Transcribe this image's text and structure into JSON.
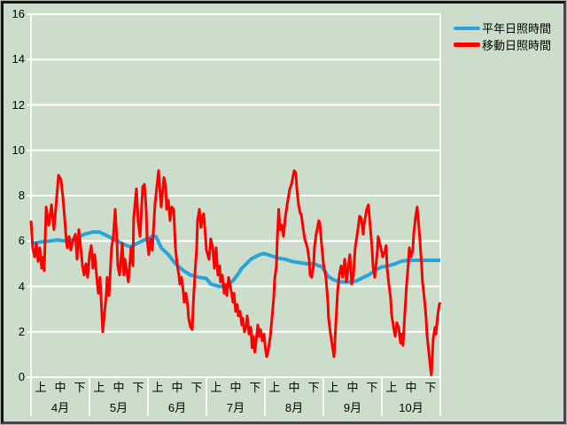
{
  "window": {
    "background": "#ccdecb",
    "outer_edge_color": "#b4b8b4",
    "inner_border_color": "#2c2c2c"
  },
  "chart_data": {
    "type": "line",
    "title": "",
    "background": "#ccdecb",
    "grid": "horizontal",
    "grid_color": "#ffffff",
    "axis_color": "#ffffff",
    "text_color": "#000000",
    "ylim": [
      0,
      16
    ],
    "yticks": [
      0,
      2,
      4,
      6,
      8,
      10,
      12,
      14,
      16
    ],
    "x_axis": {
      "months": [
        "4月",
        "5月",
        "6月",
        "7月",
        "8月",
        "9月",
        "10月"
      ],
      "periods_per_month": [
        "上",
        "中",
        "下"
      ],
      "domain": [
        0,
        214
      ],
      "unit": "day-from-april-1"
    },
    "legend_position": "top-right",
    "series": [
      {
        "name": "平年日照時間",
        "color": "#2aa3d9",
        "stroke_width": 4,
        "points": [
          [
            0,
            5.9
          ],
          [
            4.6,
            5.95
          ],
          [
            9.3,
            6.0
          ],
          [
            13.9,
            6.05
          ],
          [
            18.5,
            6.0
          ],
          [
            23.2,
            6.1
          ],
          [
            27.8,
            6.3
          ],
          [
            32.4,
            6.4
          ],
          [
            35.7,
            6.4
          ],
          [
            39.4,
            6.25
          ],
          [
            44,
            6.05
          ],
          [
            48.6,
            5.85
          ],
          [
            51.9,
            5.75
          ],
          [
            55.6,
            5.9
          ],
          [
            59.3,
            6.05
          ],
          [
            63.4,
            6.2
          ],
          [
            65.3,
            6.2
          ],
          [
            68.1,
            5.7
          ],
          [
            71.8,
            5.4
          ],
          [
            75.5,
            5.0
          ],
          [
            79.7,
            4.7
          ],
          [
            83.4,
            4.5
          ],
          [
            88,
            4.4
          ],
          [
            91.7,
            4.35
          ],
          [
            94,
            4.1
          ],
          [
            96.3,
            4.05
          ],
          [
            98.7,
            4.0
          ],
          [
            101,
            4.0
          ],
          [
            103.3,
            4.1
          ],
          [
            105.6,
            4.25
          ],
          [
            107.9,
            4.5
          ],
          [
            110.2,
            4.8
          ],
          [
            112.6,
            5.0
          ],
          [
            114.9,
            5.2
          ],
          [
            117.2,
            5.3
          ],
          [
            119.5,
            5.4
          ],
          [
            121.8,
            5.45
          ],
          [
            125.5,
            5.35
          ],
          [
            129.2,
            5.25
          ],
          [
            132.9,
            5.2
          ],
          [
            136.6,
            5.1
          ],
          [
            140.3,
            5.05
          ],
          [
            144,
            5.0
          ],
          [
            147.8,
            5.0
          ],
          [
            152.4,
            4.85
          ],
          [
            153.8,
            4.65
          ],
          [
            155.2,
            4.45
          ],
          [
            158,
            4.3
          ],
          [
            161.2,
            4.2
          ],
          [
            164.4,
            4.2
          ],
          [
            167.2,
            4.2
          ],
          [
            170.4,
            4.25
          ],
          [
            173.7,
            4.4
          ],
          [
            176.4,
            4.5
          ],
          [
            179.7,
            4.7
          ],
          [
            182.9,
            4.85
          ],
          [
            186.6,
            4.9
          ],
          [
            190.4,
            5.0
          ],
          [
            193.2,
            5.1
          ],
          [
            196.8,
            5.15
          ],
          [
            201.4,
            5.15
          ],
          [
            206,
            5.15
          ],
          [
            210.6,
            5.15
          ],
          [
            214,
            5.15
          ]
        ]
      },
      {
        "name": "移動日照時間",
        "color": "#ff0000",
        "stroke_width": 3,
        "points": [
          [
            0,
            6.9
          ],
          [
            0.9,
            5.7
          ],
          [
            1.9,
            5.3
          ],
          [
            2.8,
            5.9
          ],
          [
            3.7,
            5.1
          ],
          [
            4.6,
            5.7
          ],
          [
            5.6,
            4.8
          ],
          [
            6.5,
            5.3
          ],
          [
            6.9,
            4.7
          ],
          [
            7.9,
            7.5
          ],
          [
            9.3,
            6.7
          ],
          [
            10.7,
            7.6
          ],
          [
            12,
            6.5
          ],
          [
            13,
            7.5
          ],
          [
            14.4,
            8.9
          ],
          [
            15.7,
            8.7
          ],
          [
            16.7,
            7.9
          ],
          [
            17.6,
            7.0
          ],
          [
            18.5,
            6.0
          ],
          [
            19,
            5.7
          ],
          [
            19.9,
            6.2
          ],
          [
            20.8,
            5.6
          ],
          [
            21.8,
            6.0
          ],
          [
            23.2,
            6.3
          ],
          [
            24.1,
            5.2
          ],
          [
            25,
            6.5
          ],
          [
            25.9,
            5.8
          ],
          [
            26.9,
            4.9
          ],
          [
            27.8,
            4.5
          ],
          [
            28.7,
            5.0
          ],
          [
            29.6,
            4.4
          ],
          [
            30.6,
            5.4
          ],
          [
            31.5,
            5.8
          ],
          [
            32.4,
            4.8
          ],
          [
            33.3,
            5.4
          ],
          [
            34.7,
            4.1
          ],
          [
            35.2,
            3.7
          ],
          [
            36.1,
            4.4
          ],
          [
            37.5,
            2.0
          ],
          [
            39.4,
            3.7
          ],
          [
            39.8,
            4.4
          ],
          [
            40.8,
            3.6
          ],
          [
            42.1,
            5.7
          ],
          [
            43.1,
            6.2
          ],
          [
            44,
            7.4
          ],
          [
            44.9,
            6.1
          ],
          [
            45.4,
            4.9
          ],
          [
            46.3,
            4.5
          ],
          [
            47.7,
            5.9
          ],
          [
            48.6,
            4.5
          ],
          [
            49.1,
            5.2
          ],
          [
            50.9,
            4.2
          ],
          [
            52.3,
            5.7
          ],
          [
            53.3,
            4.9
          ],
          [
            53.7,
            7.0
          ],
          [
            55.1,
            8.3
          ],
          [
            56,
            6.9
          ],
          [
            57,
            6.2
          ],
          [
            58.4,
            8.4
          ],
          [
            59.3,
            8.5
          ],
          [
            60.2,
            7.4
          ],
          [
            60.7,
            6.1
          ],
          [
            61.6,
            5.4
          ],
          [
            62.5,
            6.1
          ],
          [
            63.4,
            5.6
          ],
          [
            64.8,
            7.6
          ],
          [
            65.8,
            8.4
          ],
          [
            66.7,
            9.1
          ],
          [
            67.6,
            8.0
          ],
          [
            68.1,
            7.5
          ],
          [
            69.5,
            8.8
          ],
          [
            70.4,
            8.4
          ],
          [
            70.9,
            7.4
          ],
          [
            71.8,
            7.8
          ],
          [
            72.7,
            6.9
          ],
          [
            73.6,
            7.5
          ],
          [
            74.6,
            7.4
          ],
          [
            75.5,
            5.7
          ],
          [
            76.4,
            5.0
          ],
          [
            77.3,
            4.5
          ],
          [
            77.8,
            4.1
          ],
          [
            78.7,
            4.4
          ],
          [
            79.7,
            3.7
          ],
          [
            80.1,
            3.3
          ],
          [
            81,
            3.7
          ],
          [
            82,
            3.1
          ],
          [
            82.4,
            2.6
          ],
          [
            83.4,
            2.2
          ],
          [
            84.3,
            2.1
          ],
          [
            84.8,
            3.2
          ],
          [
            85.7,
            4.5
          ],
          [
            86.6,
            5.7
          ],
          [
            87.1,
            6.9
          ],
          [
            88,
            7.4
          ],
          [
            88.9,
            6.6
          ],
          [
            89.4,
            7.0
          ],
          [
            90.3,
            7.2
          ],
          [
            91.2,
            6.2
          ],
          [
            91.7,
            5.6
          ],
          [
            93.1,
            5.2
          ],
          [
            94,
            6.1
          ],
          [
            95,
            5.7
          ],
          [
            95.9,
            4.8
          ],
          [
            96.8,
            5.7
          ],
          [
            97.7,
            4.5
          ],
          [
            98.7,
            4.9
          ],
          [
            99.1,
            4.2
          ],
          [
            100,
            4.5
          ],
          [
            101,
            3.7
          ],
          [
            101.4,
            4.1
          ],
          [
            102.4,
            3.6
          ],
          [
            103.3,
            4.4
          ],
          [
            104.2,
            4.0
          ],
          [
            105.6,
            3.3
          ],
          [
            106.1,
            3.7
          ],
          [
            107,
            2.9
          ],
          [
            107.9,
            3.2
          ],
          [
            108.4,
            2.7
          ],
          [
            109.3,
            2.9
          ],
          [
            110.2,
            2.3
          ],
          [
            110.7,
            2.6
          ],
          [
            111.6,
            2.0
          ],
          [
            112.6,
            2.3
          ],
          [
            113,
            2.7
          ],
          [
            114,
            1.9
          ],
          [
            114.9,
            2.2
          ],
          [
            115.6,
            1.3
          ],
          [
            116.3,
            1.8
          ],
          [
            117,
            1.1
          ],
          [
            117.7,
            1.6
          ],
          [
            118.6,
            2.3
          ],
          [
            119.3,
            1.8
          ],
          [
            120,
            2.1
          ],
          [
            120.9,
            1.6
          ],
          [
            121.8,
            1.9
          ],
          [
            122.5,
            1.3
          ],
          [
            123.2,
            0.9
          ],
          [
            124.1,
            1.2
          ],
          [
            125.1,
            1.8
          ],
          [
            126,
            2.6
          ],
          [
            126.9,
            3.5
          ],
          [
            127.4,
            4.3
          ],
          [
            128.3,
            4.9
          ],
          [
            128.8,
            6.2
          ],
          [
            129.5,
            7.4
          ],
          [
            130.2,
            6.5
          ],
          [
            131.1,
            6.7
          ],
          [
            132,
            6.2
          ],
          [
            132.9,
            7.0
          ],
          [
            133.9,
            7.6
          ],
          [
            135.3,
            8.3
          ],
          [
            136.2,
            8.5
          ],
          [
            137.6,
            9.1
          ],
          [
            138.5,
            9.0
          ],
          [
            139,
            8.3
          ],
          [
            139.9,
            7.6
          ],
          [
            140.8,
            7.2
          ],
          [
            141.3,
            7.2
          ],
          [
            142.2,
            6.6
          ],
          [
            143.1,
            6.1
          ],
          [
            144.5,
            5.7
          ],
          [
            145.4,
            5.2
          ],
          [
            145.9,
            4.5
          ],
          [
            146.8,
            4.4
          ],
          [
            147.8,
            5.0
          ],
          [
            148.2,
            5.7
          ],
          [
            149.1,
            6.3
          ],
          [
            150.5,
            6.9
          ],
          [
            151,
            6.8
          ],
          [
            151.9,
            5.9
          ],
          [
            152.9,
            5.0
          ],
          [
            154.2,
            4.4
          ],
          [
            155.2,
            3.3
          ],
          [
            155.6,
            2.6
          ],
          [
            156.6,
            1.9
          ],
          [
            157.5,
            1.4
          ],
          [
            158.4,
            0.9
          ],
          [
            159.3,
            2.2
          ],
          [
            160.3,
            3.8
          ],
          [
            161.2,
            4.5
          ],
          [
            162.1,
            4.9
          ],
          [
            163,
            4.4
          ],
          [
            164,
            5.2
          ],
          [
            164.9,
            4.2
          ],
          [
            166.7,
            5.4
          ],
          [
            167.7,
            4.1
          ],
          [
            168.6,
            4.5
          ],
          [
            169.5,
            5.7
          ],
          [
            170.9,
            6.5
          ],
          [
            171.8,
            7.1
          ],
          [
            172.7,
            7.0
          ],
          [
            173.7,
            6.3
          ],
          [
            174.1,
            6.7
          ],
          [
            175.5,
            7.4
          ],
          [
            176.4,
            7.6
          ],
          [
            177.4,
            6.6
          ],
          [
            178.3,
            5.7
          ],
          [
            178.8,
            4.9
          ],
          [
            179.7,
            4.4
          ],
          [
            181.1,
            5.6
          ],
          [
            181.5,
            6.2
          ],
          [
            182.9,
            5.7
          ],
          [
            183.9,
            5.3
          ],
          [
            184.8,
            5.5
          ],
          [
            185.7,
            5.8
          ],
          [
            186.2,
            4.8
          ],
          [
            187.1,
            4.1
          ],
          [
            188,
            3.5
          ],
          [
            188.5,
            2.8
          ],
          [
            189.9,
            2.0
          ],
          [
            190.4,
            1.8
          ],
          [
            191.3,
            2.4
          ],
          [
            192.2,
            2.2
          ],
          [
            193.2,
            1.5
          ],
          [
            193.6,
            1.9
          ],
          [
            194.5,
            1.4
          ],
          [
            195.4,
            2.7
          ],
          [
            196.4,
            4.1
          ],
          [
            197.3,
            5.0
          ],
          [
            197.8,
            5.7
          ],
          [
            198.7,
            5.3
          ],
          [
            199.6,
            5.6
          ],
          [
            200.1,
            6.3
          ],
          [
            201,
            7.0
          ],
          [
            201.9,
            7.5
          ],
          [
            202.4,
            7.0
          ],
          [
            203.3,
            6.1
          ],
          [
            204.2,
            5.0
          ],
          [
            204.7,
            4.2
          ],
          [
            205.6,
            3.5
          ],
          [
            206.5,
            2.7
          ],
          [
            207,
            1.9
          ],
          [
            208,
            1.1
          ],
          [
            208.9,
            0.35
          ],
          [
            209.3,
            0.1
          ],
          [
            210.3,
            1.7
          ],
          [
            211.2,
            2.2
          ],
          [
            211.7,
            1.9
          ],
          [
            212.6,
            2.7
          ],
          [
            213.5,
            3.2
          ],
          [
            214,
            3.3
          ]
        ]
      }
    ]
  }
}
